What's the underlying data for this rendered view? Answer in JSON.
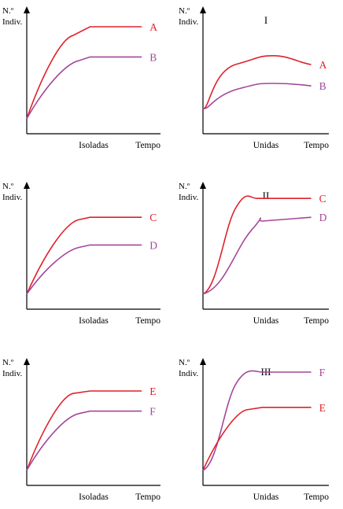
{
  "colors": {
    "red": "#e0212b",
    "purple": "#a3479a",
    "axis": "#000000"
  },
  "chart_data": [
    {
      "type": "line",
      "panel": "Isoladas",
      "roman": "",
      "ylabel": [
        "N.º",
        "Indiv."
      ],
      "xlabel_left": "Isoladas",
      "xlabel_right": "Tempo",
      "series": [
        {
          "name": "A",
          "color": "red",
          "x": [
            0,
            0.4,
            0.55,
            1
          ],
          "y": [
            0.12,
            0.78,
            0.85,
            0.85
          ],
          "shape": "concave"
        },
        {
          "name": "B",
          "color": "purple",
          "x": [
            0,
            0.45,
            0.55,
            1
          ],
          "y": [
            0.12,
            0.58,
            0.61,
            0.61
          ],
          "shape": "concave"
        }
      ]
    },
    {
      "type": "line",
      "panel": "Unidas",
      "roman": "I",
      "ylabel": [
        "N.º",
        "Indiv."
      ],
      "xlabel_left": "Unidas",
      "xlabel_right": "Tempo",
      "series": [
        {
          "name": "A",
          "color": "red",
          "x": [
            0,
            0.3,
            0.65,
            1
          ],
          "y": [
            0.2,
            0.55,
            0.62,
            0.55
          ],
          "shape": "hump"
        },
        {
          "name": "B",
          "color": "purple",
          "x": [
            0,
            0.3,
            0.65,
            1
          ],
          "y": [
            0.2,
            0.35,
            0.4,
            0.38
          ],
          "shape": "hump"
        }
      ]
    },
    {
      "type": "line",
      "panel": "Isoladas",
      "roman": "",
      "ylabel": [
        "N.º",
        "Indiv."
      ],
      "xlabel_left": "Isoladas",
      "xlabel_right": "Tempo",
      "series": [
        {
          "name": "C",
          "color": "red",
          "x": [
            0,
            0.45,
            0.55,
            1
          ],
          "y": [
            0.12,
            0.71,
            0.73,
            0.73
          ],
          "shape": "concave"
        },
        {
          "name": "D",
          "color": "purple",
          "x": [
            0,
            0.45,
            0.55,
            1
          ],
          "y": [
            0.12,
            0.49,
            0.51,
            0.51
          ],
          "shape": "concave"
        }
      ]
    },
    {
      "type": "line",
      "panel": "Unidas",
      "roman": "II",
      "ylabel": [
        "N.º",
        "Indiv."
      ],
      "xlabel_left": "Unidas",
      "xlabel_right": "Tempo",
      "series": [
        {
          "name": "C",
          "color": "red",
          "x": [
            0,
            0.3,
            0.5,
            1
          ],
          "y": [
            0.12,
            0.8,
            0.88,
            0.88
          ],
          "shape": "sigmoid"
        },
        {
          "name": "D",
          "color": "purple",
          "x": [
            0,
            0.45,
            0.55,
            1
          ],
          "y": [
            0.12,
            0.63,
            0.7,
            0.73
          ],
          "shape": "sigmoid"
        }
      ]
    },
    {
      "type": "line",
      "panel": "Isoladas",
      "roman": "",
      "ylabel": [
        "N.º",
        "Indiv."
      ],
      "xlabel_left": "Isoladas",
      "xlabel_right": "Tempo",
      "series": [
        {
          "name": "E",
          "color": "red",
          "x": [
            0,
            0.4,
            0.55,
            1
          ],
          "y": [
            0.12,
            0.73,
            0.75,
            0.75
          ],
          "shape": "concave"
        },
        {
          "name": "F",
          "color": "purple",
          "x": [
            0,
            0.45,
            0.55,
            1
          ],
          "y": [
            0.12,
            0.57,
            0.59,
            0.59
          ],
          "shape": "concave"
        }
      ]
    },
    {
      "type": "line",
      "panel": "Unidas",
      "roman": "III",
      "ylabel": [
        "N.º",
        "Indiv."
      ],
      "xlabel_left": "Unidas",
      "xlabel_right": "Tempo",
      "series": [
        {
          "name": "F",
          "color": "purple",
          "x": [
            0,
            0.3,
            0.55,
            1
          ],
          "y": [
            0.12,
            0.8,
            0.9,
            0.9
          ],
          "shape": "sigmoid"
        },
        {
          "name": "E",
          "color": "red",
          "x": [
            0,
            0.4,
            0.55,
            1
          ],
          "y": [
            0.12,
            0.6,
            0.62,
            0.62
          ],
          "shape": "concave"
        }
      ]
    }
  ]
}
